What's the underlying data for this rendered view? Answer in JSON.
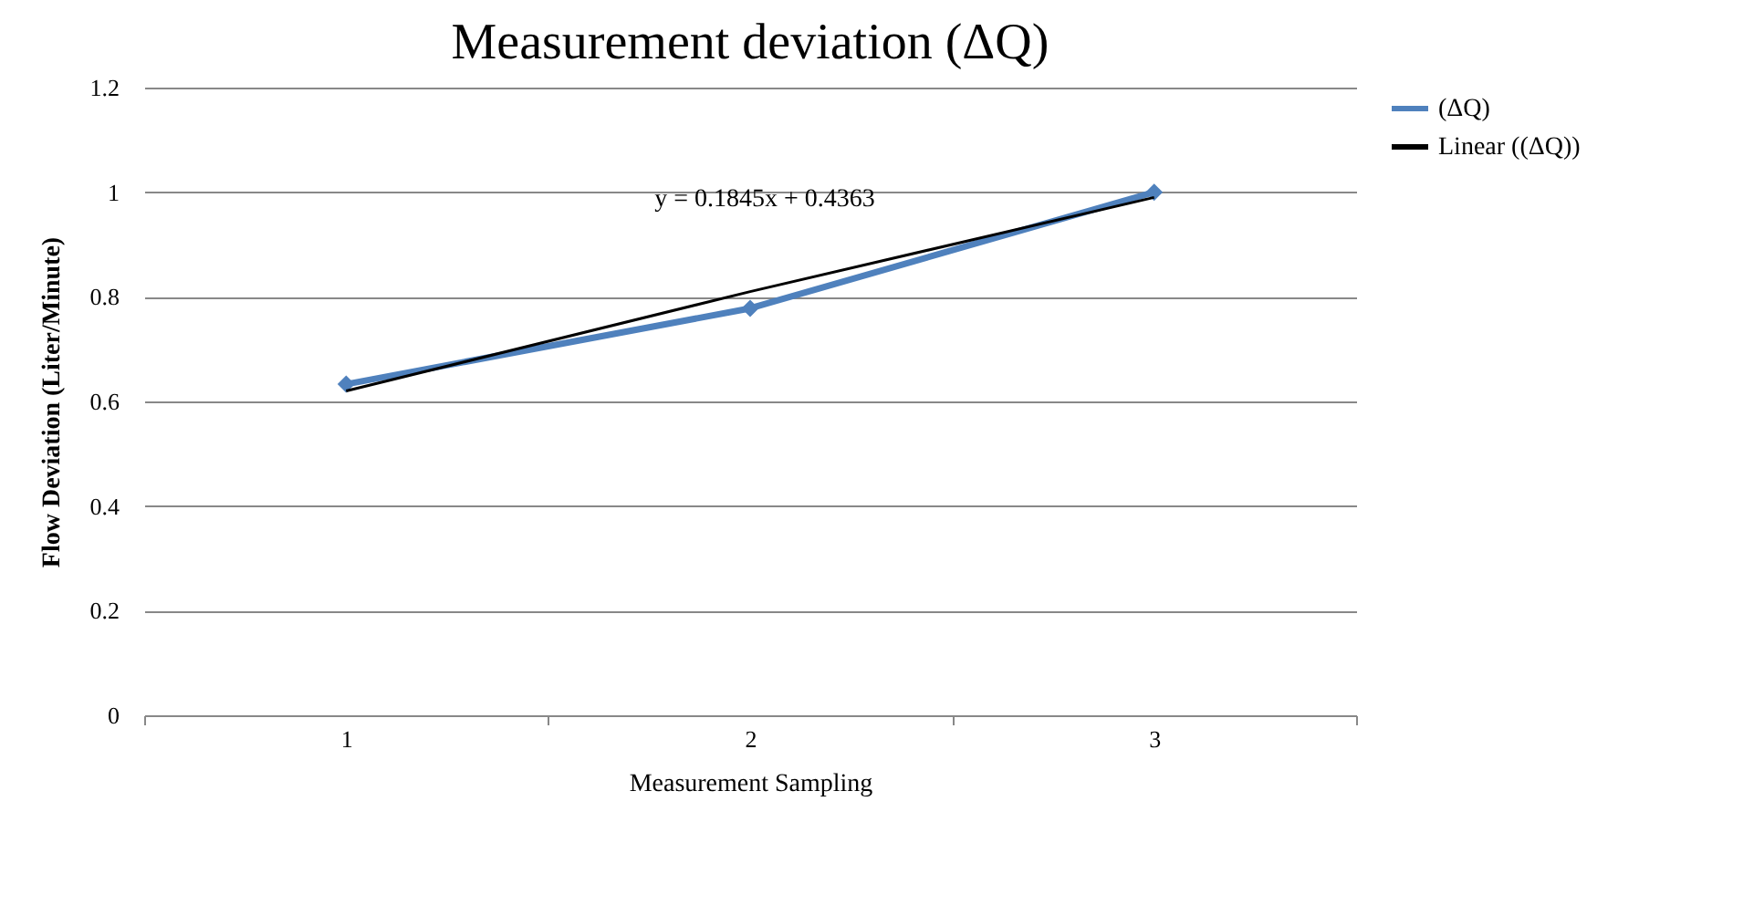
{
  "chart_data": {
    "type": "line",
    "title": "Measurement deviation (ΔQ)",
    "xlabel": "Measurement Sampling",
    "ylabel": "Flow Deviation (Liter/Minute)",
    "categories": [
      "1",
      "2",
      "3"
    ],
    "series": [
      {
        "name": "(ΔQ)",
        "color": "#4f81bd",
        "marker": "diamond",
        "values": [
          0.633,
          0.778,
          1.0
        ]
      },
      {
        "name": "Linear ((ΔQ))",
        "type": "line",
        "color": "#000000",
        "marker": "none",
        "values": [
          0.62,
          0.81,
          0.99
        ]
      }
    ],
    "annotations": [
      "y = 0.1845x + 0.4363"
    ],
    "ylim": [
      0,
      1.2
    ],
    "yticks": [
      0,
      0.2,
      0.4,
      0.6,
      0.8,
      1,
      1.2
    ],
    "grid": "y",
    "legend": "right"
  }
}
